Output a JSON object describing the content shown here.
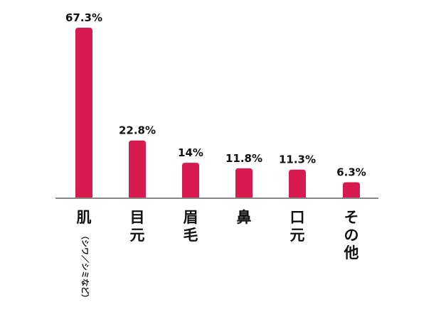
{
  "chart_data": {
    "type": "bar",
    "categories": [
      "肌",
      "目元",
      "眉毛",
      "鼻",
      "口元",
      "その他"
    ],
    "category_notes": [
      "（シワ／シミなど）",
      "",
      "",
      "",
      "",
      ""
    ],
    "values": [
      67.3,
      22.8,
      14.0,
      11.8,
      11.3,
      6.3
    ],
    "value_labels": [
      "67.3%",
      "22.8%",
      "14%",
      "11.8%",
      "11.3%",
      "6.3%"
    ],
    "title": "",
    "xlabel": "",
    "ylabel": "",
    "ylim": [
      0,
      70
    ],
    "grid": false,
    "legend": "none",
    "bar_color": "#d81b4e",
    "axis_color": "#888888",
    "text_color": "#111111"
  }
}
